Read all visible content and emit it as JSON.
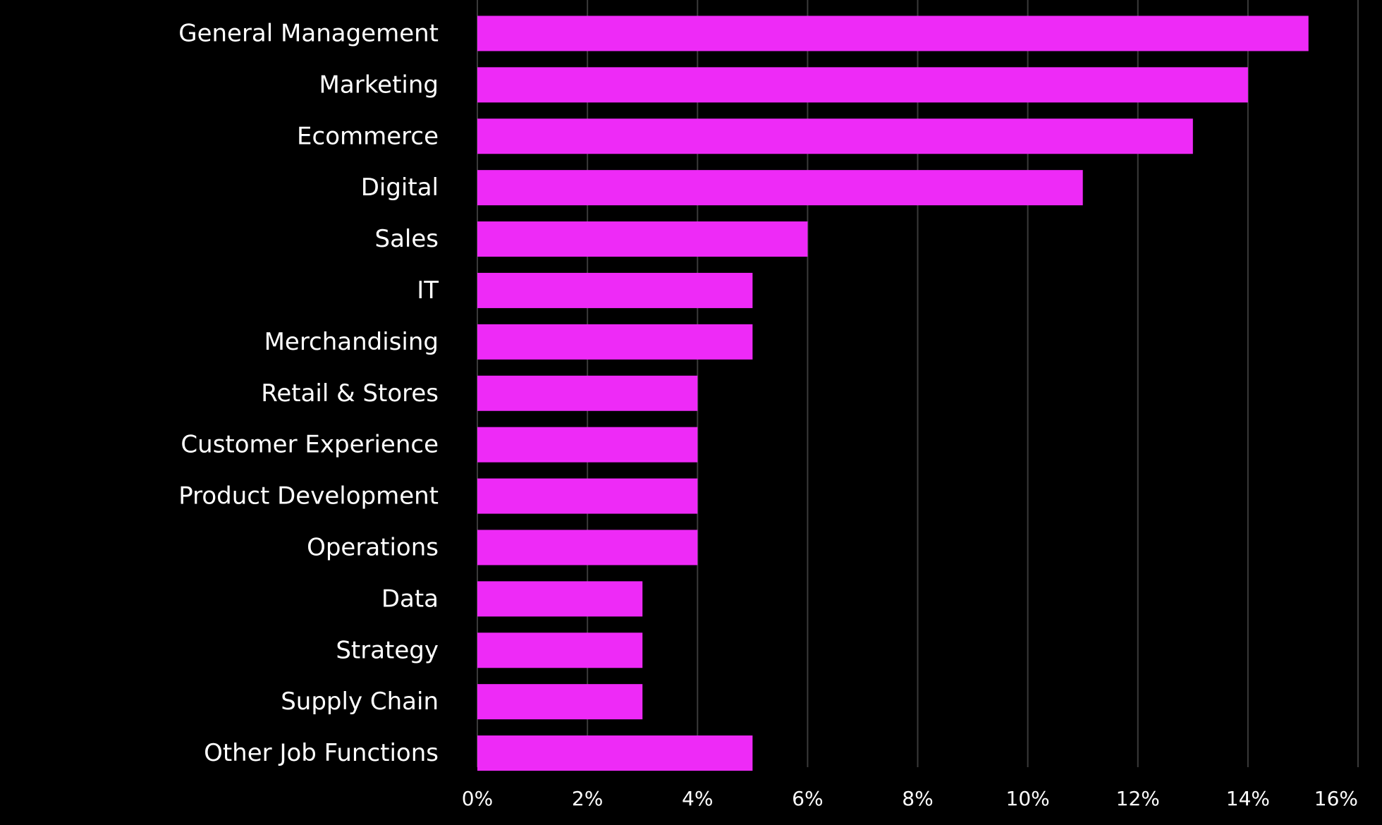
{
  "background_color": "#000000",
  "chart_data": {
    "type": "bar",
    "orientation": "horizontal",
    "title": "",
    "xlabel": "",
    "ylabel": "",
    "categories": [
      "General Management",
      "Marketing",
      "Ecommerce",
      "Digital",
      "Sales",
      "IT",
      "Merchandising",
      "Retail & Stores",
      "Customer Experience",
      "Product Development",
      "Operations",
      "Data",
      "Strategy",
      "Supply Chain",
      "Other Job Functions"
    ],
    "values": [
      15.1,
      14.0,
      13.0,
      11.0,
      6.0,
      5.0,
      5.0,
      4.0,
      4.0,
      4.0,
      4.0,
      3.0,
      3.0,
      3.0,
      5.0
    ],
    "value_unit": "%",
    "xlim": [
      0,
      16
    ],
    "x_ticks": [
      0,
      2,
      4,
      6,
      8,
      10,
      12,
      14,
      16
    ],
    "x_tick_labels": [
      "0%",
      "2%",
      "4%",
      "6%",
      "8%",
      "10%",
      "12%",
      "14%",
      "16%"
    ],
    "grid": "vertical",
    "legend": "none",
    "colors": {
      "bar": "#EE2AF7",
      "grid": "#3a3a3a",
      "text": "#FFFFFF"
    }
  }
}
